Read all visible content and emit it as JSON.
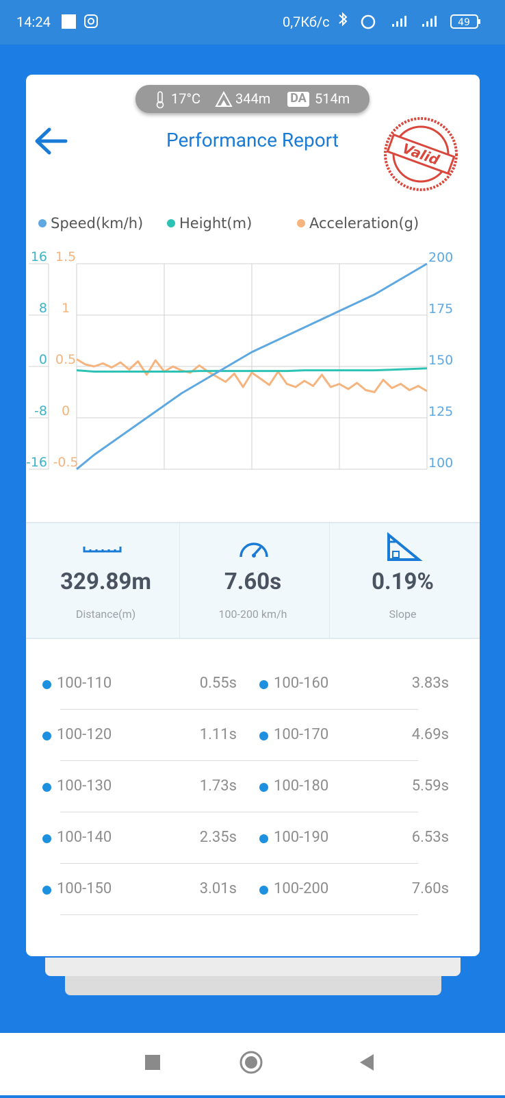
{
  "status_bar": {
    "time": "14:24",
    "network_speed": "0,7Кб/с",
    "battery": "49"
  },
  "conditions": {
    "temperature": "17°C",
    "altitude": "344m",
    "da_badge": "DA",
    "density_altitude": "514m"
  },
  "header": {
    "title": "Performance Report",
    "stamp": "Valid"
  },
  "chart_data": {
    "type": "line",
    "series": [
      {
        "name": "Speed(km/h)",
        "color": "#5ea8e2",
        "axis": "y2",
        "values": [
          100,
          107,
          113,
          119,
          125,
          131,
          137,
          142,
          147,
          152,
          157,
          161,
          165,
          169,
          173,
          177,
          181,
          185,
          190,
          195,
          200
        ]
      },
      {
        "name": "Height(m)",
        "color": "#2ec2b4",
        "values": [
          -0.6,
          -0.8,
          -0.8,
          -0.8,
          -0.8,
          -0.8,
          -0.8,
          -0.7,
          -0.7,
          -0.7,
          -0.7,
          -0.7,
          -0.7,
          -0.6,
          -0.6,
          -0.6,
          -0.6,
          -0.6,
          -0.5,
          -0.4,
          -0.3
        ]
      },
      {
        "name": "Acceleration(g)",
        "color": "#f5b47e",
        "axis": "y3",
        "values": [
          0.57,
          0.52,
          0.5,
          0.53,
          0.49,
          0.54,
          0.47,
          0.55,
          0.42,
          0.56,
          0.45,
          0.5,
          0.46,
          0.44,
          0.51,
          0.45,
          0.4,
          0.35,
          0.43,
          0.3,
          0.44,
          0.38,
          0.32,
          0.45,
          0.33,
          0.3,
          0.36,
          0.31,
          0.42,
          0.3,
          0.33,
          0.28,
          0.34,
          0.27,
          0.25,
          0.37,
          0.29,
          0.33,
          0.27,
          0.31,
          0.26
        ]
      }
    ],
    "ylim": [
      -16,
      16
    ],
    "yticks": [
      16,
      8,
      0,
      -8,
      -16
    ],
    "y3lim": [
      -0.5,
      1.5
    ],
    "y3ticks": [
      1.5,
      1,
      0.5,
      0,
      -0.5
    ],
    "y2lim": [
      100,
      200
    ],
    "y2ticks": [
      200,
      175,
      150,
      125,
      100
    ],
    "grid": true,
    "legend": "top"
  },
  "stats": [
    {
      "value": "329.89m",
      "label": "Distance(m)"
    },
    {
      "value": "7.60s",
      "label": "100-200 km/h"
    },
    {
      "value": "0.19%",
      "label": "Slope"
    }
  ],
  "splits": [
    {
      "range": "100-110",
      "time": "0.55s"
    },
    {
      "range": "100-120",
      "time": "1.11s"
    },
    {
      "range": "100-130",
      "time": "1.73s"
    },
    {
      "range": "100-140",
      "time": "2.35s"
    },
    {
      "range": "100-150",
      "time": "3.01s"
    },
    {
      "range": "100-160",
      "time": "3.83s"
    },
    {
      "range": "100-170",
      "time": "4.69s"
    },
    {
      "range": "100-180",
      "time": "5.59s"
    },
    {
      "range": "100-190",
      "time": "6.53s"
    },
    {
      "range": "100-200",
      "time": "7.60s"
    }
  ]
}
